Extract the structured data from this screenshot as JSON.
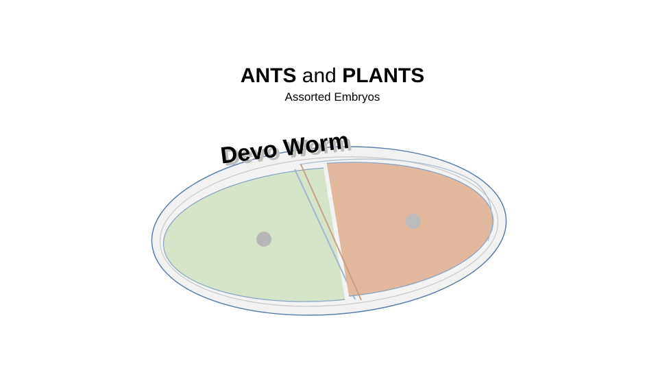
{
  "header": {
    "title_part1": "ANTS",
    "title_part2": " and ",
    "title_part3": "PLANTS",
    "subtitle": "Assorted Embryos"
  },
  "logo": {
    "text": "Devo Worm"
  },
  "colors": {
    "outer_outline": "#5a7ea8",
    "dish_fill": "#eeeeee",
    "left_fill": "#d5e3c8",
    "right_fill": "#e2b99f",
    "nucleus": "#b7b7b7",
    "logo_text": "#000000",
    "logo_shadow": "#bdbdbd"
  }
}
